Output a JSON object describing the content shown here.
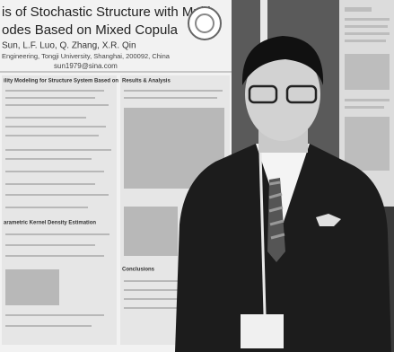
{
  "poster": {
    "title_lines": [
      "is of Stochastic Structure with Multi-",
      "odes Based on Mixed Copula"
    ],
    "authors": "Sun, L.F. Luo, Q. Zhang, X.R. Qin",
    "affiliation": "Engineering, Tongji University, Shanghai, 200092, China",
    "email": "sun1979@sina.com",
    "sections": [
      "ility Modeling for Structure System Based on",
      "Results & Analysis",
      "arametric Kernel Density Estimation",
      "Conclusions"
    ]
  }
}
